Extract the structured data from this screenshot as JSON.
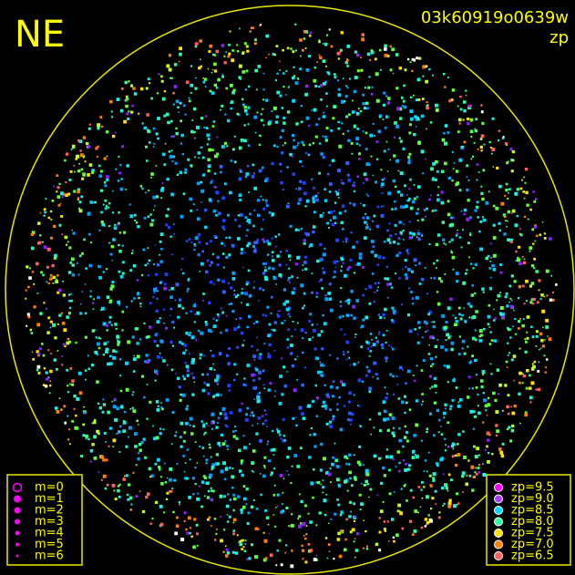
{
  "header": {
    "direction": "NE",
    "frame_id": "03k60919o0639w",
    "quantity": "zp"
  },
  "magnitude_legend": {
    "color": "#ff00ff",
    "items": [
      {
        "label": "m=0",
        "size": 4.5
      },
      {
        "label": "m=1",
        "size": 4
      },
      {
        "label": "m=2",
        "size": 3.5
      },
      {
        "label": "m=3",
        "size": 3
      },
      {
        "label": "m=4",
        "size": 2.5
      },
      {
        "label": "m=5",
        "size": 2
      },
      {
        "label": "m=6",
        "size": 1.5
      }
    ]
  },
  "zp_legend": {
    "items": [
      {
        "label": "zp=9.5",
        "color": "#ff00ff"
      },
      {
        "label": "zp=9.0",
        "color": "#b040ff"
      },
      {
        "label": "zp=8.5",
        "color": "#00d8ff"
      },
      {
        "label": "zp=8.0",
        "color": "#30ffa0"
      },
      {
        "label": "zp=7.5",
        "color": "#ffe000"
      },
      {
        "label": "zp=7.0",
        "color": "#ff8000"
      },
      {
        "label": "zp=6.5",
        "color": "#ff6060"
      }
    ]
  }
}
